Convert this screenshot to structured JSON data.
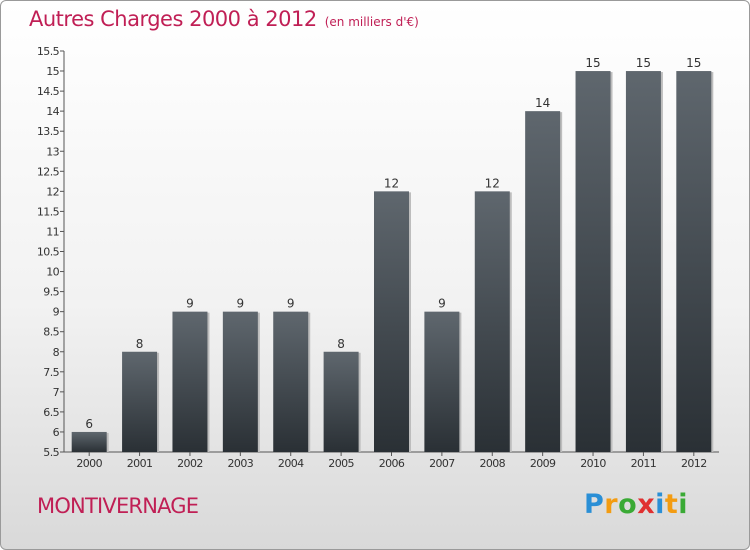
{
  "title": "Autres Charges 2000 à 2012",
  "unit_note": "(en milliers d'€)",
  "commune": "MONTIVERNAGE",
  "logo": {
    "letters": [
      "P",
      "r",
      "o",
      "x",
      "i",
      "t",
      "i"
    ],
    "colors": [
      "#2a8fd6",
      "#f39c12",
      "#3aaa35",
      "#e03030",
      "#2a8fd6",
      "#f39c12",
      "#3aaa35"
    ]
  },
  "colors": {
    "accent": "#c01f55",
    "bar_top": "#5f676e",
    "bar_bottom": "#2a3035"
  },
  "chart_data": {
    "type": "bar",
    "categories": [
      "2000",
      "2001",
      "2002",
      "2003",
      "2004",
      "2005",
      "2006",
      "2007",
      "2008",
      "2009",
      "2010",
      "2011",
      "2012"
    ],
    "values": [
      6,
      8,
      9,
      9,
      9,
      8,
      12,
      9,
      12,
      14,
      15,
      15,
      15
    ],
    "ylim": [
      5.5,
      15.5
    ],
    "yticks": [
      "5.5",
      "6",
      "6.5",
      "7",
      "7.5",
      "8",
      "8.5",
      "9",
      "9.5",
      "10",
      "10.5",
      "11",
      "11.5",
      "12",
      "12.5",
      "13",
      "13.5",
      "14",
      "14.5",
      "15",
      "15.5"
    ],
    "title": "Autres Charges 2000 à 2012",
    "xlabel": "",
    "ylabel": "",
    "grid": false,
    "data_labels": true
  }
}
